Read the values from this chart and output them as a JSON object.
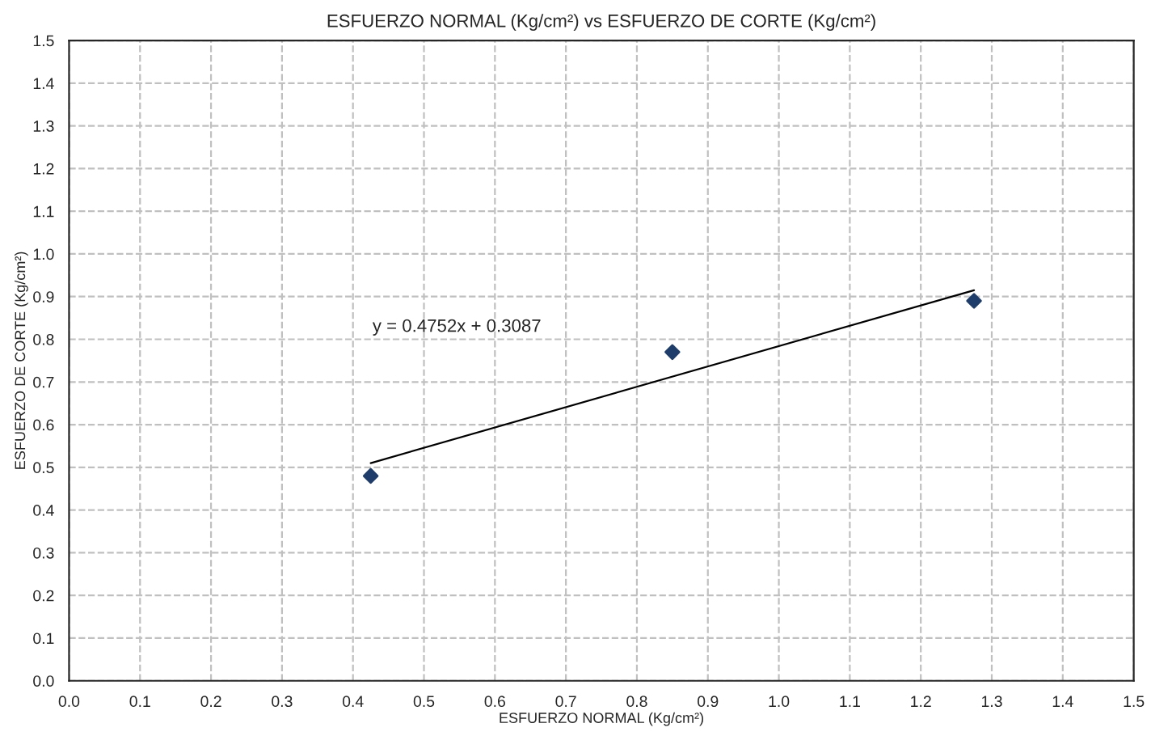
{
  "chart_data": {
    "type": "scatter",
    "title": "ESFUERZO NORMAL (Kg/cm²) vs ESFUERZO DE CORTE (Kg/cm²)",
    "xlabel": "ESFUERZO NORMAL (Kg/cm²)",
    "ylabel": "ESFUERZO DE CORTE (Kg/cm²)",
    "series": [
      {
        "color": "#1f3d6b",
        "marker": "diamond",
        "x": [
          0.425,
          0.85,
          1.275
        ],
        "values": [
          0.48,
          0.77,
          0.89
        ]
      },
      {
        "type": "line",
        "color": "#000000",
        "marker": "none",
        "line_style": "solid",
        "x": [
          0.425,
          1.275
        ],
        "values": [
          0.51,
          0.915
        ]
      }
    ],
    "annotations": [
      "y = 0.4752x + 0.3087"
    ],
    "xlim": [
      0,
      1.5
    ],
    "ylim": [
      0,
      1.5
    ],
    "xticks": [
      {
        "value": 0,
        "label": "0.0"
      },
      0.1,
      0.2,
      0.3,
      0.4,
      0.5,
      0.6,
      0.7,
      0.8,
      0.9,
      {
        "value": 1,
        "label": "1.0"
      },
      1.1,
      1.2,
      1.3,
      1.4,
      1.5
    ],
    "yticks": [
      {
        "value": 0,
        "label": "0.0"
      },
      0.1,
      0.2,
      0.3,
      0.4,
      0.5,
      0.6,
      0.7,
      0.8,
      0.9,
      {
        "value": 1,
        "label": "1.0"
      },
      1.1,
      1.2,
      1.3,
      1.4,
      1.5
    ],
    "grid": true,
    "legend": false
  }
}
